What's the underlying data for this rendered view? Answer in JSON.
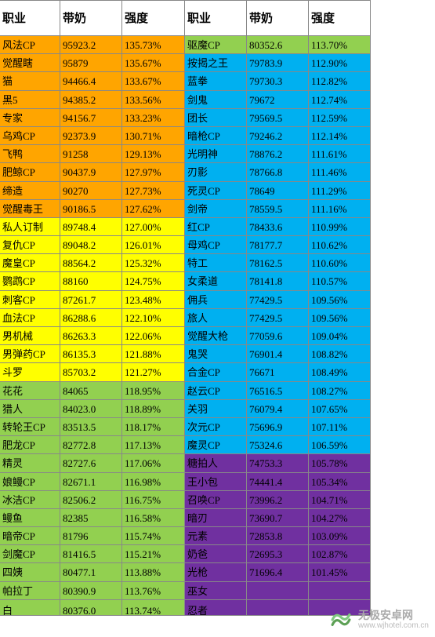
{
  "headers": [
    "职业",
    "带奶",
    "强度",
    "职业",
    "带奶",
    "强度"
  ],
  "tiers": {
    "orange": "#ffa500",
    "yellow": "#ffff00",
    "green": "#92d050",
    "blue": "#00b0f0",
    "purple": "#7030a0"
  },
  "left": [
    {
      "job": "风法CP",
      "val": "95923.2",
      "pct": "135.73%",
      "tier": "orange"
    },
    {
      "job": "觉醒瞎",
      "val": "95879",
      "pct": "135.67%",
      "tier": "orange"
    },
    {
      "job": "猫",
      "val": "94466.4",
      "pct": "133.67%",
      "tier": "orange"
    },
    {
      "job": "黑5",
      "val": "94385.2",
      "pct": "133.56%",
      "tier": "orange"
    },
    {
      "job": "专家",
      "val": "94156.7",
      "pct": "133.23%",
      "tier": "orange"
    },
    {
      "job": "乌鸡CP",
      "val": "92373.9",
      "pct": "130.71%",
      "tier": "orange"
    },
    {
      "job": "飞鸭",
      "val": "91258",
      "pct": "129.13%",
      "tier": "orange"
    },
    {
      "job": "肥鲸CP",
      "val": "90437.9",
      "pct": "127.97%",
      "tier": "orange"
    },
    {
      "job": "缔造",
      "val": "90270",
      "pct": "127.73%",
      "tier": "orange"
    },
    {
      "job": "觉醒毒王",
      "val": "90186.5",
      "pct": "127.62%",
      "tier": "orange"
    },
    {
      "job": "私人订制",
      "val": "89748.4",
      "pct": "127.00%",
      "tier": "yellow"
    },
    {
      "job": "复仇CP",
      "val": "89048.2",
      "pct": "126.01%",
      "tier": "yellow"
    },
    {
      "job": "魔皇CP",
      "val": "88564.2",
      "pct": "125.32%",
      "tier": "yellow"
    },
    {
      "job": "鹦鹉CP",
      "val": "88160",
      "pct": "124.75%",
      "tier": "yellow"
    },
    {
      "job": "刺客CP",
      "val": "87261.7",
      "pct": "123.48%",
      "tier": "yellow"
    },
    {
      "job": "血法CP",
      "val": "86288.6",
      "pct": "122.10%",
      "tier": "yellow"
    },
    {
      "job": "男机械",
      "val": "86263.3",
      "pct": "122.06%",
      "tier": "yellow"
    },
    {
      "job": "男弹药CP",
      "val": "86135.3",
      "pct": "121.88%",
      "tier": "yellow"
    },
    {
      "job": "斗罗",
      "val": "85703.2",
      "pct": "121.27%",
      "tier": "yellow"
    },
    {
      "job": "花花",
      "val": "84065",
      "pct": "118.95%",
      "tier": "green"
    },
    {
      "job": "猎人",
      "val": "84023.0",
      "pct": "118.89%",
      "tier": "green"
    },
    {
      "job": "转轮王CP",
      "val": "83513.5",
      "pct": "118.17%",
      "tier": "green"
    },
    {
      "job": "肥龙CP",
      "val": "82772.8",
      "pct": "117.13%",
      "tier": "green"
    },
    {
      "job": "精灵",
      "val": "82727.6",
      "pct": "117.06%",
      "tier": "green"
    },
    {
      "job": "娘鳗CP",
      "val": "82671.1",
      "pct": "116.98%",
      "tier": "green"
    },
    {
      "job": "冰洁CP",
      "val": "82506.2",
      "pct": "116.75%",
      "tier": "green"
    },
    {
      "job": "鳗鱼",
      "val": "82385",
      "pct": "116.58%",
      "tier": "green"
    },
    {
      "job": "暗帝CP",
      "val": "81796",
      "pct": "115.74%",
      "tier": "green"
    },
    {
      "job": "剑魔CP",
      "val": "81416.5",
      "pct": "115.21%",
      "tier": "green"
    },
    {
      "job": "四姨",
      "val": "80477.1",
      "pct": "113.88%",
      "tier": "green"
    },
    {
      "job": "帕拉丁",
      "val": "80390.9",
      "pct": "113.76%",
      "tier": "green"
    },
    {
      "job": "白",
      "val": "80376.0",
      "pct": "113.74%",
      "tier": "green"
    }
  ],
  "right": [
    {
      "job": "驱魔CP",
      "val": "80352.6",
      "pct": "113.70%",
      "tier": "green"
    },
    {
      "job": "按揭之王",
      "val": "79783.9",
      "pct": "112.90%",
      "tier": "blue"
    },
    {
      "job": "蓝拳",
      "val": "79730.3",
      "pct": "112.82%",
      "tier": "blue"
    },
    {
      "job": "剑鬼",
      "val": "79672",
      "pct": "112.74%",
      "tier": "blue"
    },
    {
      "job": "团长",
      "val": "79569.5",
      "pct": "112.59%",
      "tier": "blue"
    },
    {
      "job": "暗枪CP",
      "val": "79246.2",
      "pct": "112.14%",
      "tier": "blue"
    },
    {
      "job": "光明神",
      "val": "78876.2",
      "pct": "111.61%",
      "tier": "blue"
    },
    {
      "job": "刃影",
      "val": "78766.8",
      "pct": "111.46%",
      "tier": "blue"
    },
    {
      "job": "死灵CP",
      "val": "78649",
      "pct": "111.29%",
      "tier": "blue"
    },
    {
      "job": "剑帝",
      "val": "78559.5",
      "pct": "111.16%",
      "tier": "blue"
    },
    {
      "job": "红CP",
      "val": "78433.6",
      "pct": "110.99%",
      "tier": "blue"
    },
    {
      "job": "母鸡CP",
      "val": "78177.7",
      "pct": "110.62%",
      "tier": "blue"
    },
    {
      "job": "特工",
      "val": "78162.5",
      "pct": "110.60%",
      "tier": "blue"
    },
    {
      "job": "女柔道",
      "val": "78141.8",
      "pct": "110.57%",
      "tier": "blue"
    },
    {
      "job": "佣兵",
      "val": "77429.5",
      "pct": "109.56%",
      "tier": "blue"
    },
    {
      "job": "旅人",
      "val": "77429.5",
      "pct": "109.56%",
      "tier": "blue"
    },
    {
      "job": "觉醒大枪",
      "val": "77059.6",
      "pct": "109.04%",
      "tier": "blue"
    },
    {
      "job": "鬼哭",
      "val": "76901.4",
      "pct": "108.82%",
      "tier": "blue"
    },
    {
      "job": "合金CP",
      "val": "76671",
      "pct": "108.49%",
      "tier": "blue"
    },
    {
      "job": "赵云CP",
      "val": "76516.5",
      "pct": "108.27%",
      "tier": "blue"
    },
    {
      "job": "关羽",
      "val": "76079.4",
      "pct": "107.65%",
      "tier": "blue"
    },
    {
      "job": "次元CP",
      "val": "75696.9",
      "pct": "107.11%",
      "tier": "blue"
    },
    {
      "job": "魔灵CP",
      "val": "75324.6",
      "pct": "106.59%",
      "tier": "blue"
    },
    {
      "job": "糖拍人",
      "val": "74753.3",
      "pct": "105.78%",
      "tier": "purple"
    },
    {
      "job": "王小包",
      "val": "74441.4",
      "pct": "105.34%",
      "tier": "purple"
    },
    {
      "job": "召唤CP",
      "val": "73996.2",
      "pct": "104.71%",
      "tier": "purple"
    },
    {
      "job": "暗刃",
      "val": "73690.7",
      "pct": "104.27%",
      "tier": "purple"
    },
    {
      "job": "元素",
      "val": "72853.8",
      "pct": "103.09%",
      "tier": "purple"
    },
    {
      "job": "奶爸",
      "val": "72695.3",
      "pct": "102.87%",
      "tier": "purple"
    },
    {
      "job": "光枪",
      "val": "71696.4",
      "pct": "101.45%",
      "tier": "purple"
    },
    {
      "job": "巫女",
      "val": "",
      "pct": "",
      "tier": "purple"
    },
    {
      "job": "忍者",
      "val": "",
      "pct": "",
      "tier": "purple"
    }
  ],
  "watermark": {
    "cn": "无极安卓网",
    "url": "www.wjhotel.com.cn"
  }
}
